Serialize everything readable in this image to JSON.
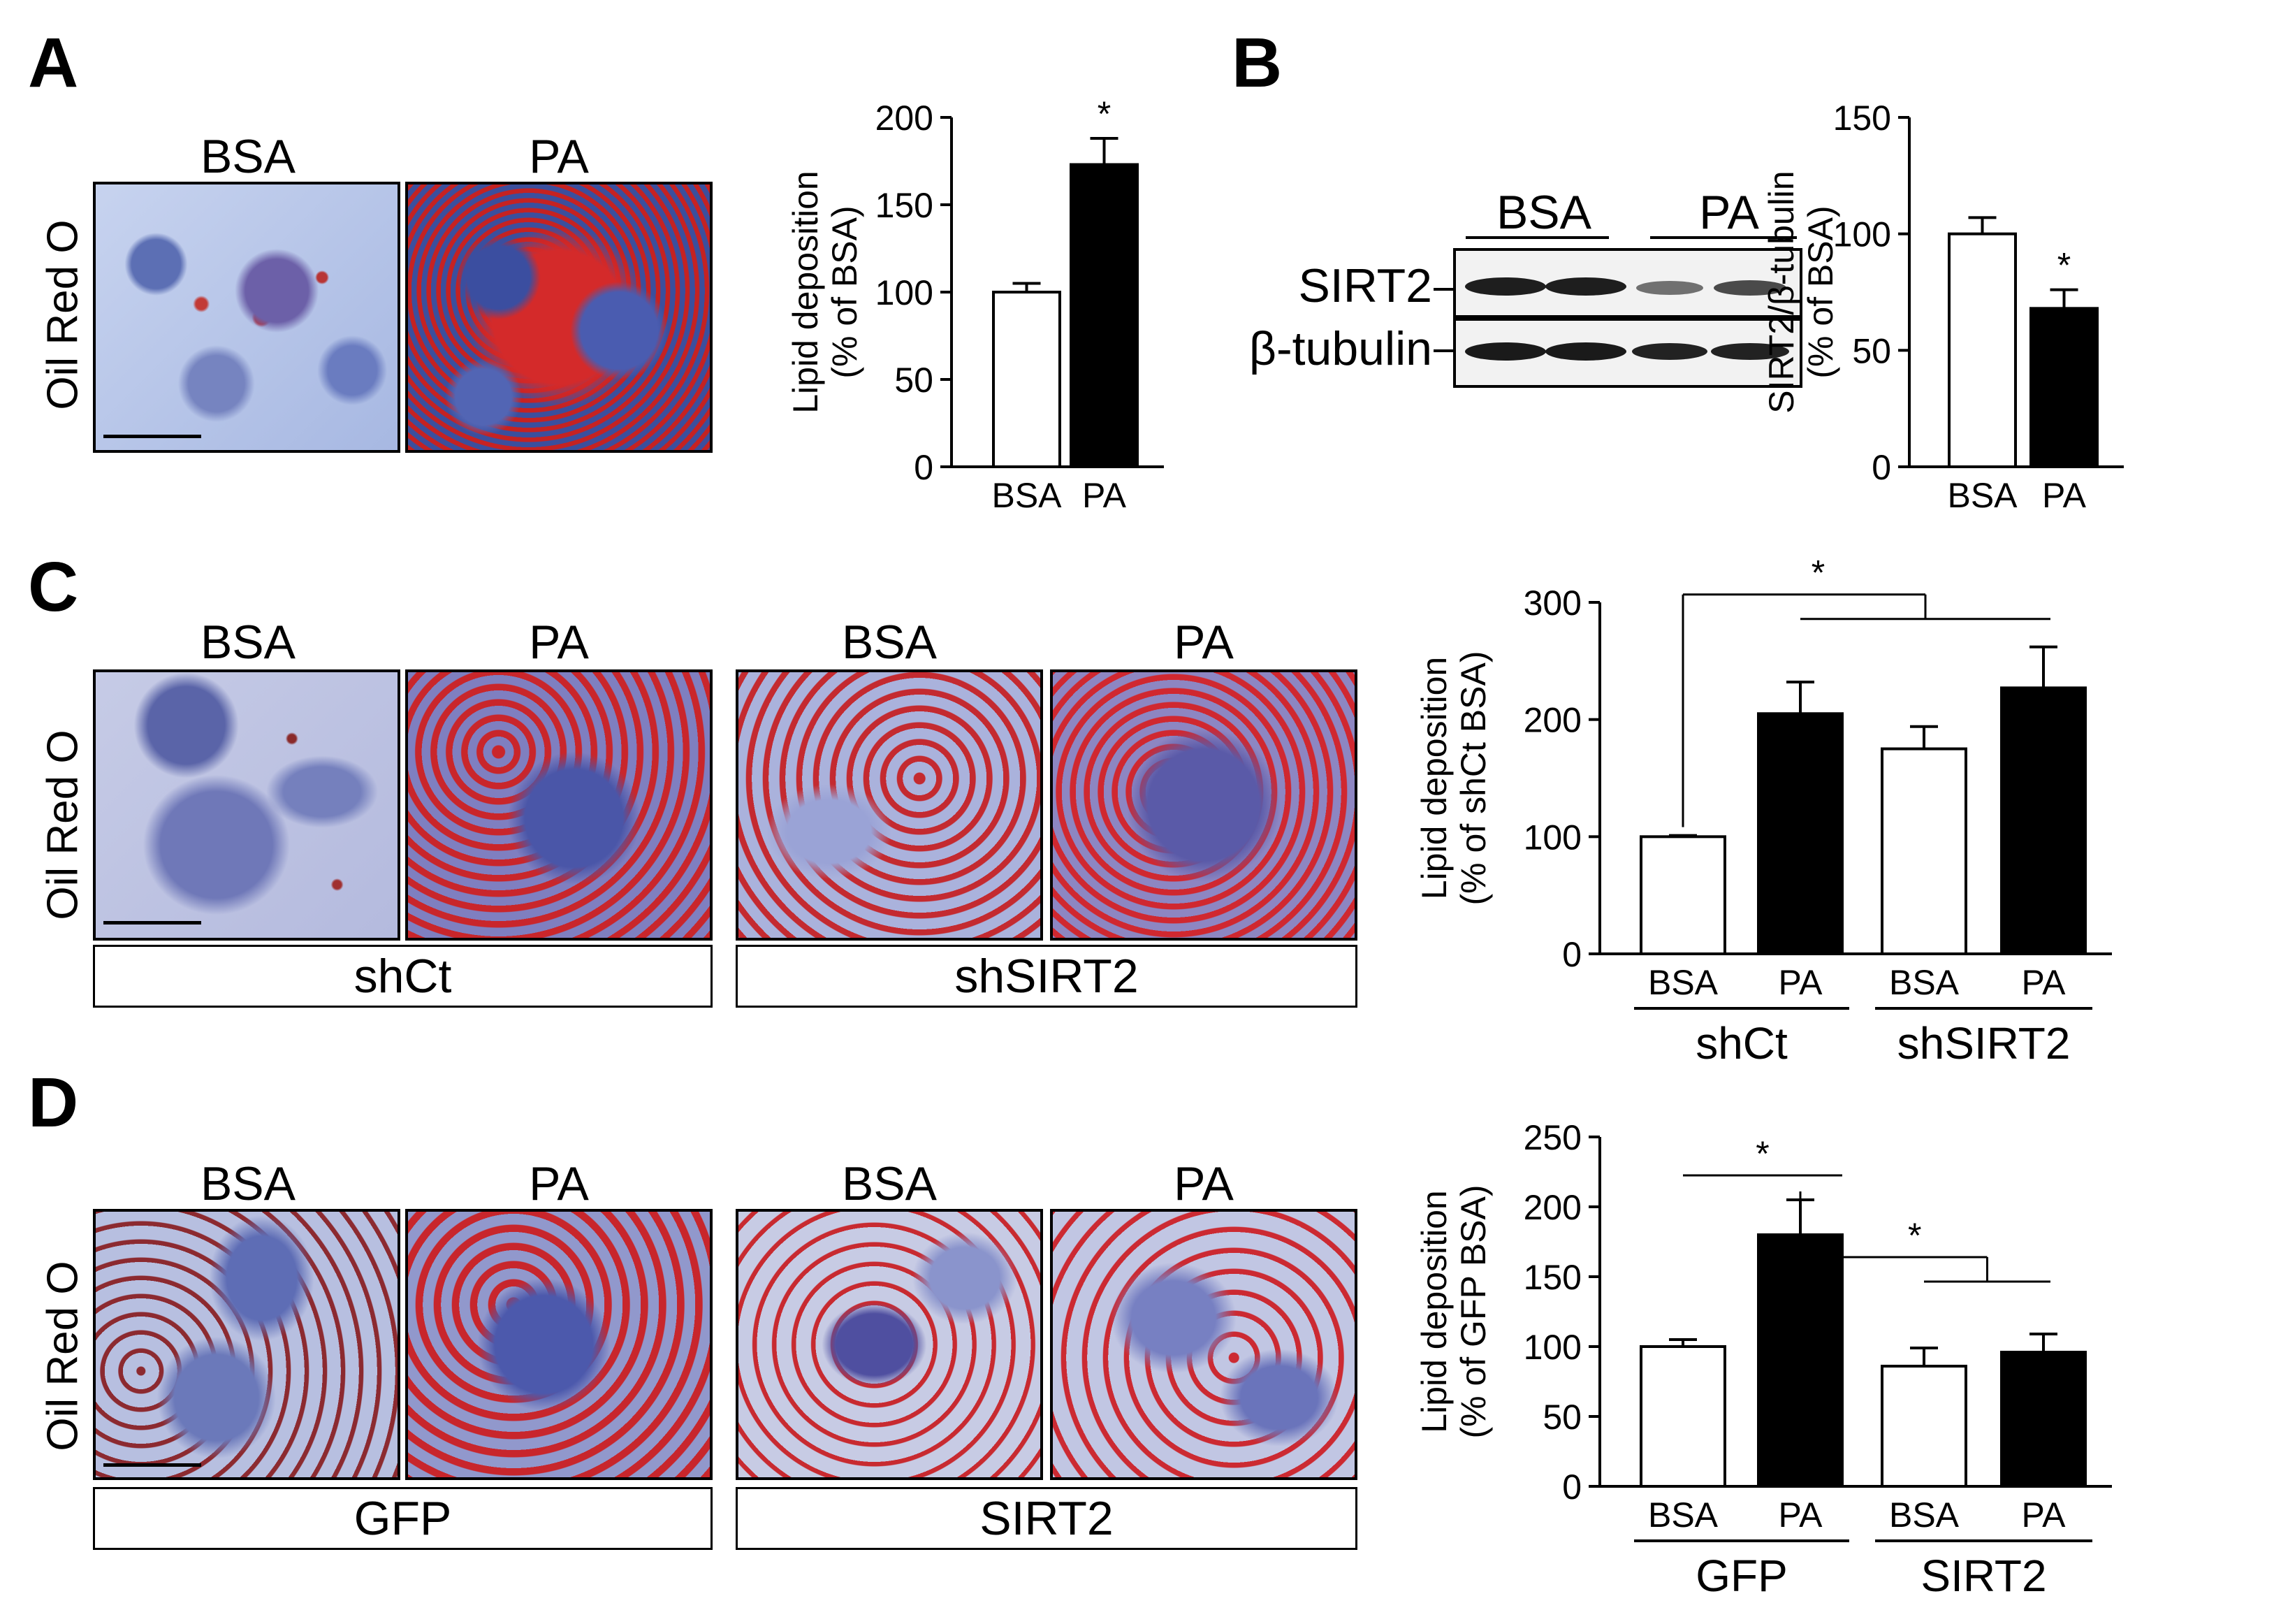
{
  "figure": {
    "panels": {
      "A": {
        "label": "A",
        "stain": "Oil Red O",
        "image_labels": [
          "BSA",
          "PA"
        ]
      },
      "B": {
        "label": "B",
        "lane_groups": [
          "BSA",
          "PA"
        ],
        "blot_labels": [
          "SIRT2",
          "β-tubulin"
        ]
      },
      "C": {
        "label": "C",
        "stain": "Oil Red O",
        "image_labels": [
          "BSA",
          "PA",
          "BSA",
          "PA"
        ],
        "groups": [
          "shCt",
          "shSIRT2"
        ]
      },
      "D": {
        "label": "D",
        "stain": "Oil Red O",
        "image_labels": [
          "BSA",
          "PA",
          "BSA",
          "PA"
        ],
        "groups": [
          "GFP",
          "SIRT2"
        ]
      }
    }
  },
  "chart_data": [
    {
      "id": "A",
      "type": "bar",
      "categories": [
        "BSA",
        "PA"
      ],
      "values": [
        100,
        173
      ],
      "errors": [
        5,
        15
      ],
      "fills": [
        "#ffffff",
        "#000000"
      ],
      "ylabel": [
        "Lipid deposition",
        "(% of BSA)"
      ],
      "ylim": [
        0,
        200
      ],
      "yticks": [
        0,
        50,
        100,
        150,
        200
      ],
      "significance": [
        {
          "type": "star",
          "bar": 1,
          "text": "*"
        }
      ]
    },
    {
      "id": "B",
      "type": "bar",
      "categories": [
        "BSA",
        "PA"
      ],
      "values": [
        100,
        68
      ],
      "errors": [
        7,
        8
      ],
      "fills": [
        "#ffffff",
        "#000000"
      ],
      "ylabel": [
        "SIRT2/β-tubulin",
        "(% of BSA)"
      ],
      "ylim": [
        0,
        150
      ],
      "yticks": [
        0,
        50,
        100,
        150
      ],
      "significance": [
        {
          "type": "star",
          "bar": 1,
          "text": "*"
        }
      ]
    },
    {
      "id": "C",
      "type": "bar",
      "categories": [
        "BSA",
        "PA",
        "BSA",
        "PA"
      ],
      "groups": [
        {
          "name": "shCt",
          "members": [
            0,
            1
          ]
        },
        {
          "name": "shSIRT2",
          "members": [
            2,
            3
          ]
        }
      ],
      "values": [
        100,
        205,
        175,
        227
      ],
      "errors": [
        1,
        27,
        19,
        35
      ],
      "fills": [
        "#ffffff",
        "#000000",
        "#ffffff",
        "#000000"
      ],
      "ylabel": [
        "Lipid deposition",
        "(% of shCt BSA)"
      ],
      "ylim": [
        0,
        300
      ],
      "yticks": [
        0,
        100,
        200,
        300
      ],
      "significance": [
        {
          "type": "bracket",
          "from": 0,
          "to": [
            1,
            3
          ],
          "text": "*"
        }
      ]
    },
    {
      "id": "D",
      "type": "bar",
      "categories": [
        "BSA",
        "PA",
        "BSA",
        "PA"
      ],
      "groups": [
        {
          "name": "GFP",
          "members": [
            0,
            1
          ]
        },
        {
          "name": "SIRT2",
          "members": [
            2,
            3
          ]
        }
      ],
      "values": [
        100,
        180,
        86,
        96
      ],
      "errors": [
        5,
        25,
        13,
        13
      ],
      "fills": [
        "#ffffff",
        "#000000",
        "#ffffff",
        "#000000"
      ],
      "ylabel": [
        "Lipid deposition",
        "(% of GFP BSA)"
      ],
      "ylim": [
        0,
        250
      ],
      "yticks": [
        0,
        50,
        100,
        150,
        200,
        250
      ],
      "significance": [
        {
          "type": "line",
          "from": 0,
          "to": 1,
          "text": "*"
        },
        {
          "type": "bracket",
          "from": 1,
          "to": [
            2,
            3
          ],
          "text": "*"
        }
      ]
    }
  ]
}
